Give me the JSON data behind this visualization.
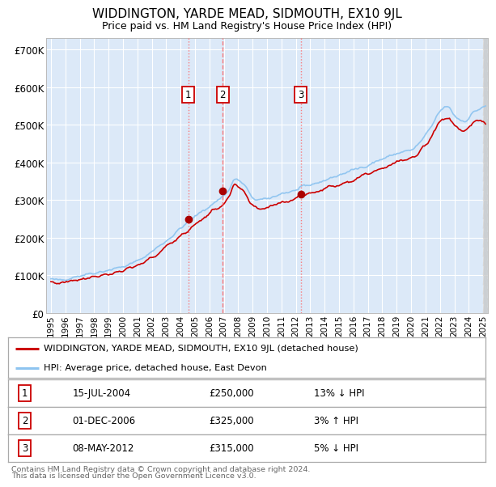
{
  "title": "WIDDINGTON, YARDE MEAD, SIDMOUTH, EX10 9JL",
  "subtitle": "Price paid vs. HM Land Registry's House Price Index (HPI)",
  "bg_color": "#dce9f8",
  "grid_color": "#ffffff",
  "hpi_color": "#8ec4f0",
  "price_color": "#cc0000",
  "marker_color": "#aa0000",
  "vline_color": "#ff6666",
  "ylim": [
    0,
    730000
  ],
  "yticks": [
    0,
    100000,
    200000,
    300000,
    400000,
    500000,
    600000,
    700000
  ],
  "ytick_labels": [
    "£0",
    "£100K",
    "£200K",
    "£300K",
    "£400K",
    "£500K",
    "£600K",
    "£700K"
  ],
  "sale_dates": [
    "2004-07-15",
    "2006-12-01",
    "2012-05-08"
  ],
  "sale_prices": [
    250000,
    325000,
    315000
  ],
  "sale_labels": [
    "1",
    "2",
    "3"
  ],
  "vline_styles": [
    "dotted",
    "dashed",
    "dotted"
  ],
  "legend_price_label": "WIDDINGTON, YARDE MEAD, SIDMOUTH, EX10 9JL (detached house)",
  "legend_hpi_label": "HPI: Average price, detached house, East Devon",
  "table_rows": [
    [
      "1",
      "15-JUL-2004",
      "£250,000",
      "13% ↓ HPI"
    ],
    [
      "2",
      "01-DEC-2006",
      "£325,000",
      "3% ↑ HPI"
    ],
    [
      "3",
      "08-MAY-2012",
      "£315,000",
      "5% ↓ HPI"
    ]
  ],
  "footer_line1": "Contains HM Land Registry data © Crown copyright and database right 2024.",
  "footer_line2": "This data is licensed under the Open Government Licence v3.0."
}
